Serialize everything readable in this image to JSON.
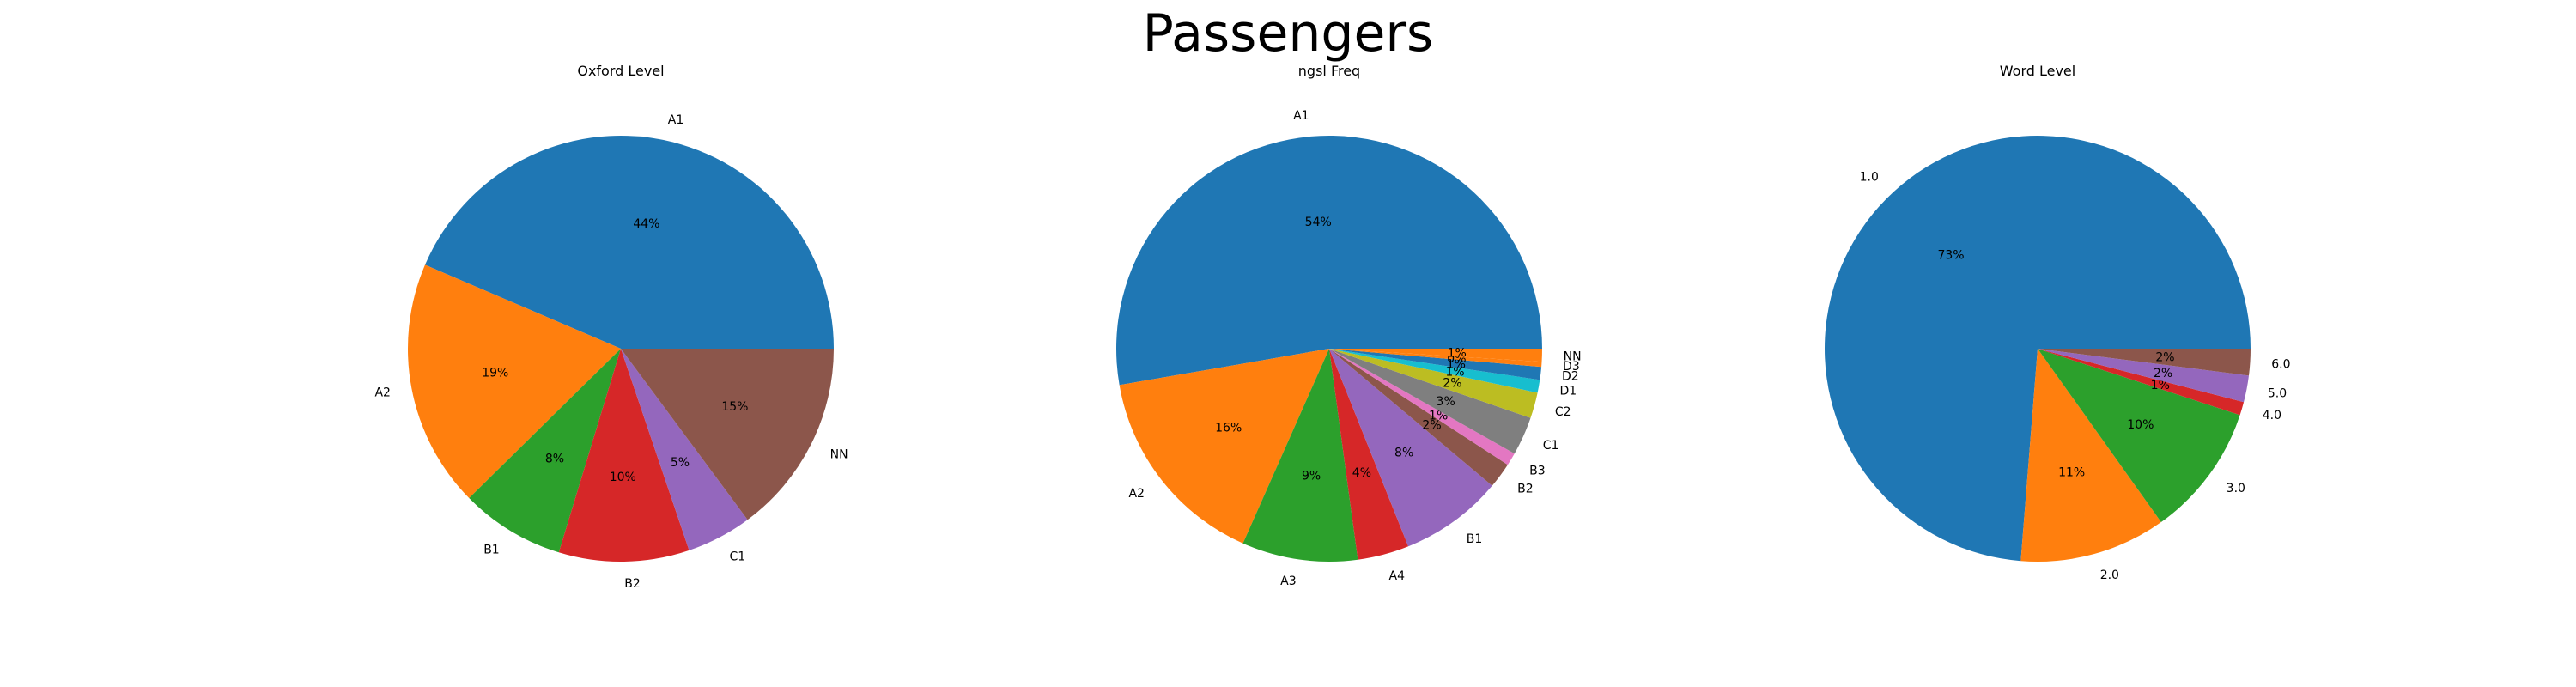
{
  "title": "Passengers",
  "chart_data": [
    {
      "type": "pie",
      "title": "Oxford Level",
      "categories": [
        "A1",
        "A2",
        "B1",
        "B2",
        "C1",
        "NN"
      ],
      "values": [
        44,
        19,
        8,
        10,
        5,
        15
      ],
      "pct_labels": [
        "44%",
        "19%",
        "8%",
        "10%",
        "5%",
        "15%"
      ],
      "colors": [
        "#1f77b4",
        "#ff7f0e",
        "#2ca02c",
        "#d62728",
        "#9467bd",
        "#8c564b"
      ]
    },
    {
      "type": "pie",
      "title": "ngsl Freq",
      "categories": [
        "A1",
        "A2",
        "A3",
        "A4",
        "B1",
        "B2",
        "B3",
        "C1",
        "C2",
        "D1",
        "D2",
        "D3",
        "NN"
      ],
      "values": [
        54,
        16,
        9,
        4,
        8,
        2,
        1,
        3,
        2,
        1,
        1,
        0.4,
        1
      ],
      "pct_labels": [
        "54%",
        "16%",
        "9%",
        "4%",
        "8%",
        "2%",
        "1%",
        "3%",
        "2%",
        "1%",
        "1%",
        "0%",
        "1%"
      ],
      "colors": [
        "#1f77b4",
        "#ff7f0e",
        "#2ca02c",
        "#d62728",
        "#9467bd",
        "#8c564b",
        "#e377c2",
        "#7f7f7f",
        "#bcbd22",
        "#17becf",
        "#1f77b4",
        "#ff7f0e",
        "#ff7f0e"
      ]
    },
    {
      "type": "pie",
      "title": "Word Level",
      "categories": [
        "1.0",
        "2.0",
        "3.0",
        "4.0",
        "5.0",
        "6.0"
      ],
      "values": [
        73,
        11,
        10,
        1,
        2,
        2
      ],
      "pct_labels": [
        "73%",
        "11%",
        "10%",
        "1%",
        "2%",
        "2%"
      ],
      "colors": [
        "#1f77b4",
        "#ff7f0e",
        "#2ca02c",
        "#d62728",
        "#9467bd",
        "#8c564b"
      ]
    }
  ]
}
